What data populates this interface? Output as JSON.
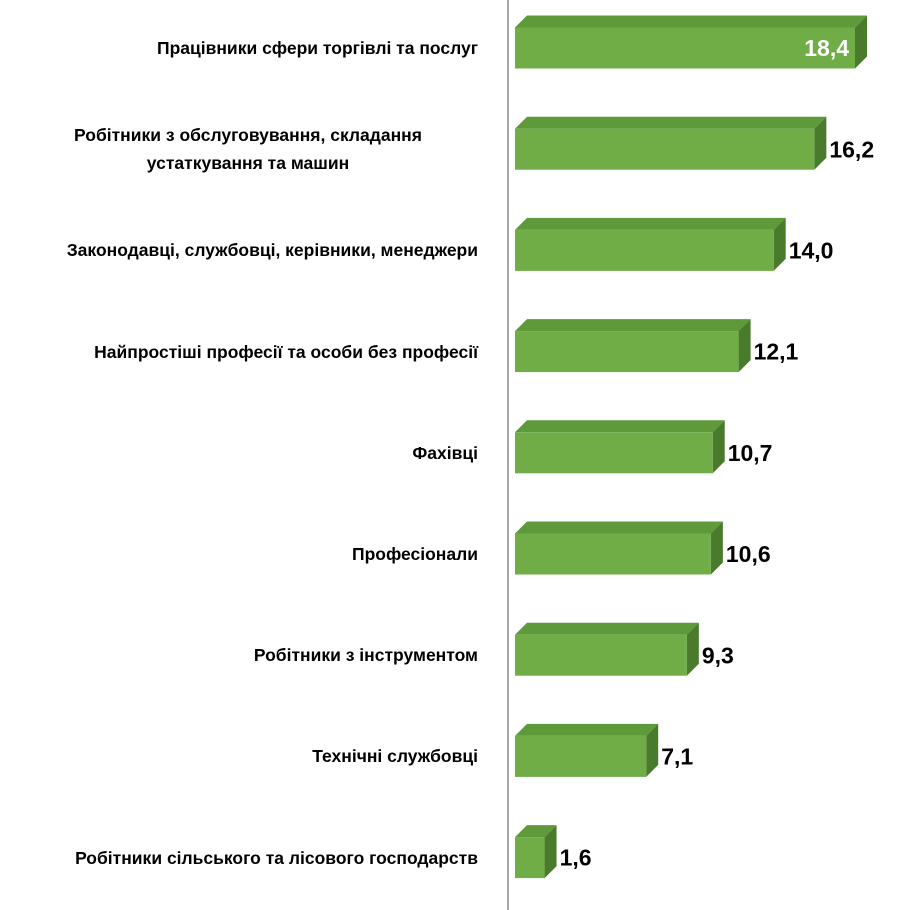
{
  "chart_data": {
    "type": "bar",
    "orientation": "horizontal",
    "categories": [
      "Працівники сфери торгівлі та послуг",
      "Робітники з обслуговування, складання устаткування та машин",
      "Законодавці, службовці, керівники, менеджери",
      "Найпростіші професії та особи без професії",
      "Фахівці",
      "Професіонали",
      "Робітники з інструментом",
      "Технічні службовці",
      "Робітники сільського та лісового господарств"
    ],
    "values": [
      18.4,
      16.2,
      14.0,
      12.1,
      10.7,
      10.6,
      9.3,
      7.1,
      1.6
    ],
    "value_labels": [
      "18,4",
      "16,2",
      "14,0",
      "12,1",
      "10,7",
      "10,6",
      "9,3",
      "7,1",
      "1,6"
    ],
    "color": "#70ad47"
  }
}
